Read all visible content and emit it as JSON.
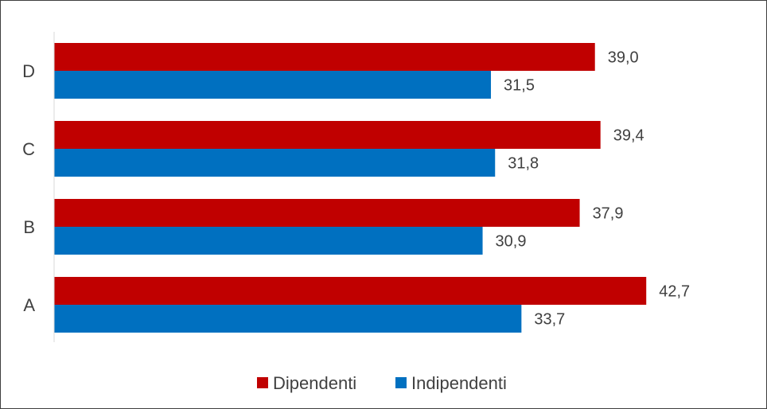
{
  "chart_data": {
    "type": "bar",
    "orientation": "horizontal",
    "categories": [
      "A",
      "B",
      "C",
      "D"
    ],
    "series": [
      {
        "name": "Dipendenti",
        "values": [
          42.7,
          37.9,
          39.4,
          39.0
        ],
        "labels": [
          "42,7",
          "37,9",
          "39,4",
          "39,0"
        ],
        "color": "#c00000"
      },
      {
        "name": "Indipendenti",
        "values": [
          33.7,
          30.9,
          31.8,
          31.5
        ],
        "labels": [
          "33,7",
          "30,9",
          "31,8",
          "31,5"
        ],
        "color": "#0070c0"
      }
    ],
    "title": "",
    "xlabel": "",
    "ylabel": "",
    "xlim": [
      0,
      45.9
    ],
    "grid": false,
    "legend": "bottom"
  }
}
